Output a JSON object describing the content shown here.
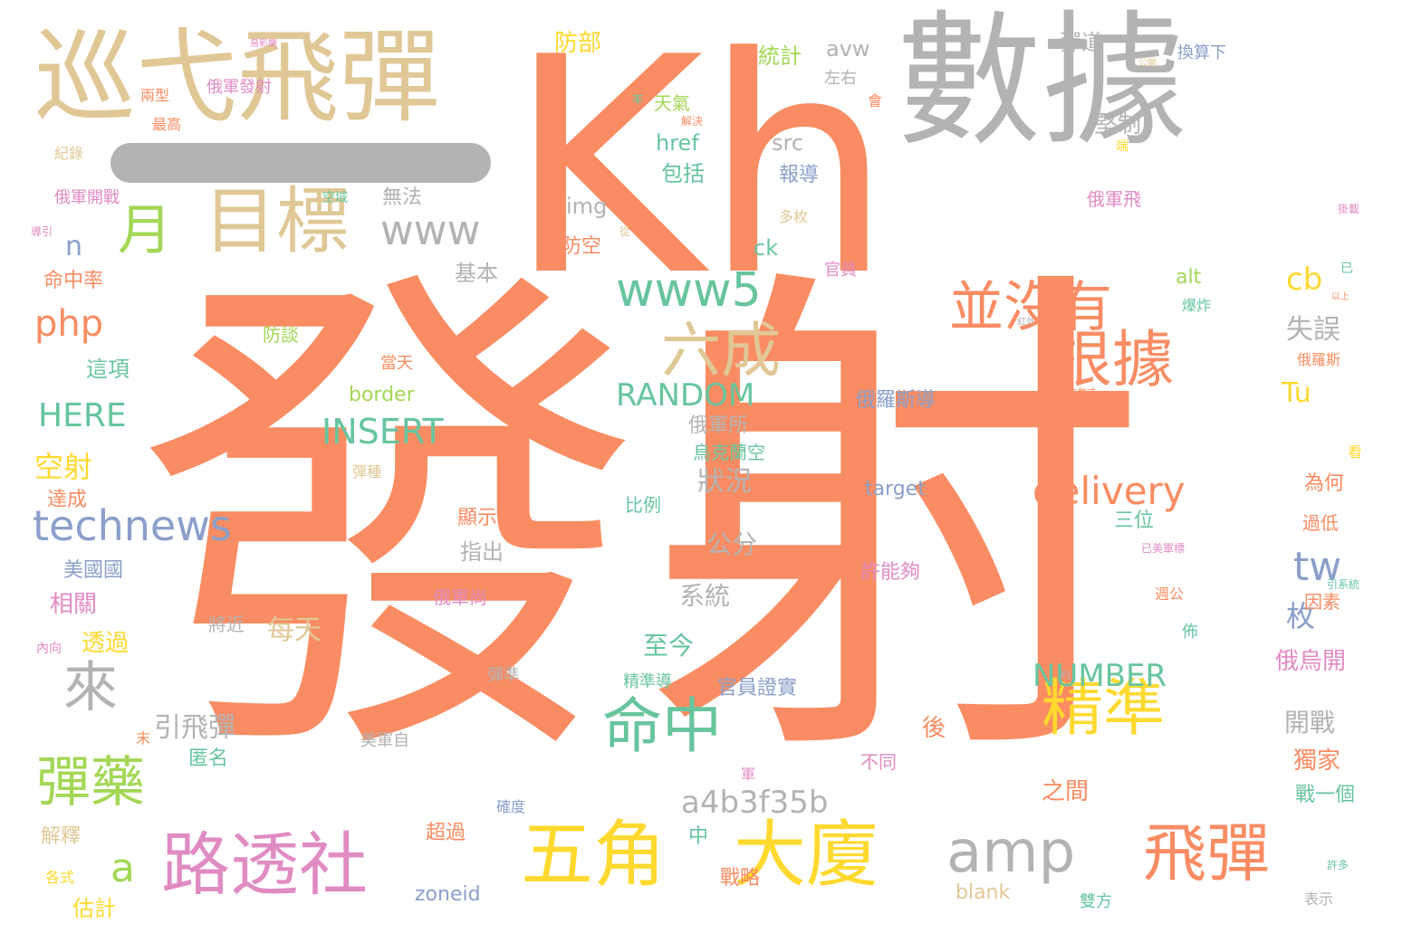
{
  "colors": {
    "orange": "#f98c62",
    "gray": "#b3b3b3",
    "tan": "#e0c896",
    "green": "#67c59e",
    "blue": "#8b9fca",
    "pink": "#e18bc3",
    "lime": "#a4d755",
    "yellow": "#ffd92e"
  },
  "words": [
    {
      "text": "發射",
      "color": "orange"
    },
    {
      "text": "Kh",
      "color": "orange"
    },
    {
      "text": "數據",
      "color": "gray"
    },
    {
      "text": "巡弋飛彈",
      "color": "tan"
    },
    {
      "text": "一",
      "color": "gray"
    },
    {
      "text": "目標",
      "color": "tan"
    },
    {
      "text": "月",
      "color": "lime"
    },
    {
      "text": "www",
      "color": "gray"
    },
    {
      "text": "www5",
      "color": "green"
    },
    {
      "text": "並沒有",
      "color": "orange"
    },
    {
      "text": "根據",
      "color": "orange"
    },
    {
      "text": "六成",
      "color": "tan"
    },
    {
      "text": "來",
      "color": "gray"
    },
    {
      "text": "命中",
      "color": "green"
    },
    {
      "text": "精準",
      "color": "yellow"
    },
    {
      "text": "彈藥",
      "color": "lime"
    },
    {
      "text": "路透社",
      "color": "pink"
    },
    {
      "text": "五角",
      "color": "yellow"
    },
    {
      "text": "大廈",
      "color": "yellow"
    },
    {
      "text": "amp",
      "color": "gray"
    },
    {
      "text": "飛彈",
      "color": "orange"
    },
    {
      "text": "technews",
      "color": "blue"
    },
    {
      "text": "delivery",
      "color": "orange"
    },
    {
      "text": "INSERT",
      "color": "green"
    },
    {
      "text": "RANDOM",
      "color": "green"
    },
    {
      "text": "NUMBER",
      "color": "green"
    },
    {
      "text": "a4b3f35b",
      "color": "gray"
    },
    {
      "text": "php",
      "color": "orange"
    },
    {
      "text": "tw",
      "color": "blue"
    },
    {
      "text": "cb",
      "color": "yellow"
    },
    {
      "text": "a",
      "color": "lime"
    },
    {
      "text": "n",
      "color": "blue"
    },
    {
      "text": "HERE",
      "color": "green"
    },
    {
      "text": "Tu",
      "color": "yellow"
    },
    {
      "text": "統計",
      "color": "lime"
    },
    {
      "text": "avw",
      "color": "gray"
    },
    {
      "text": "彈道",
      "color": "gray"
    },
    {
      "text": "換算下",
      "color": "blue"
    },
    {
      "text": "防部",
      "color": "yellow"
    },
    {
      "text": "左右",
      "color": "gray"
    },
    {
      "text": "天氣",
      "color": "lime"
    },
    {
      "text": "href",
      "color": "green"
    },
    {
      "text": "src",
      "color": "gray"
    },
    {
      "text": "堅制",
      "color": "gray"
    },
    {
      "text": "包括",
      "color": "green"
    },
    {
      "text": "報導",
      "color": "blue"
    },
    {
      "text": "無法",
      "color": "gray"
    },
    {
      "text": "img",
      "color": "gray"
    },
    {
      "text": "多枚",
      "color": "tan"
    },
    {
      "text": "俄軍飛",
      "color": "pink"
    },
    {
      "text": "防空",
      "color": "orange"
    },
    {
      "text": "ck",
      "color": "green"
    },
    {
      "text": "基本",
      "color": "gray"
    },
    {
      "text": "官員",
      "color": "pink"
    },
    {
      "text": "alt",
      "color": "lime"
    },
    {
      "text": "爆炸",
      "color": "green"
    },
    {
      "text": "命中率",
      "color": "orange"
    },
    {
      "text": "這項",
      "color": "green"
    },
    {
      "text": "防談",
      "color": "lime"
    },
    {
      "text": "當天",
      "color": "orange"
    },
    {
      "text": "border",
      "color": "lime"
    },
    {
      "text": "俄羅斯導",
      "color": "blue"
    },
    {
      "text": "失誤",
      "color": "gray"
    },
    {
      "text": "俄軍所",
      "color": "gray"
    },
    {
      "text": "烏克蘭空",
      "color": "green"
    },
    {
      "text": "空射",
      "color": "yellow"
    },
    {
      "text": "達成",
      "color": "orange"
    },
    {
      "text": "狀況",
      "color": "gray"
    },
    {
      "text": "target",
      "color": "blue"
    },
    {
      "text": "彈種",
      "color": "tan"
    },
    {
      "text": "為何",
      "color": "orange"
    },
    {
      "text": "三位",
      "color": "green"
    },
    {
      "text": "過低",
      "color": "orange"
    },
    {
      "text": "比例",
      "color": "green"
    },
    {
      "text": "顯示",
      "color": "orange"
    },
    {
      "text": "指出",
      "color": "gray"
    },
    {
      "text": "公分",
      "color": "gray"
    },
    {
      "text": "許能夠",
      "color": "pink"
    },
    {
      "text": "美國國",
      "color": "blue"
    },
    {
      "text": "相關",
      "color": "pink"
    },
    {
      "text": "俄軍尚",
      "color": "pink"
    },
    {
      "text": "系統",
      "color": "gray"
    },
    {
      "text": "枚",
      "color": "blue"
    },
    {
      "text": "每天",
      "color": "tan"
    },
    {
      "text": "將近",
      "color": "gray"
    },
    {
      "text": "透過",
      "color": "yellow"
    },
    {
      "text": "至今",
      "color": "green"
    },
    {
      "text": "週公",
      "color": "orange"
    },
    {
      "text": "因素",
      "color": "orange"
    },
    {
      "text": "官員證實",
      "color": "blue"
    },
    {
      "text": "俄烏開",
      "color": "pink"
    },
    {
      "text": "彈準",
      "color": "gray"
    },
    {
      "text": "精準導",
      "color": "green"
    },
    {
      "text": "開戰",
      "color": "gray"
    },
    {
      "text": "引飛彈",
      "color": "gray"
    },
    {
      "text": "匿名",
      "color": "green"
    },
    {
      "text": "後",
      "color": "orange"
    },
    {
      "text": "不同",
      "color": "pink"
    },
    {
      "text": "獨家",
      "color": "orange"
    },
    {
      "text": "美軍自",
      "color": "gray"
    },
    {
      "text": "之間",
      "color": "orange"
    },
    {
      "text": "戰一個",
      "color": "green"
    },
    {
      "text": "中",
      "color": "green"
    },
    {
      "text": "確度",
      "color": "blue"
    },
    {
      "text": "解釋",
      "color": "tan"
    },
    {
      "text": "超過",
      "color": "orange"
    },
    {
      "text": "戰略",
      "color": "orange"
    },
    {
      "text": "zoneid",
      "color": "blue"
    },
    {
      "text": "blank",
      "color": "tan"
    },
    {
      "text": "雙方",
      "color": "green"
    },
    {
      "text": "估計",
      "color": "yellow"
    },
    {
      "text": "表示",
      "color": "gray"
    },
    {
      "text": "俄軍開戰",
      "color": "pink"
    },
    {
      "text": "俄軍發射",
      "color": "pink"
    },
    {
      "text": "兩型",
      "color": "orange"
    },
    {
      "text": "最高",
      "color": "orange"
    },
    {
      "text": "紀錄",
      "color": "tan"
    },
    {
      "text": "空域",
      "color": "green"
    },
    {
      "text": "會",
      "color": "orange"
    },
    {
      "text": "率",
      "color": "green"
    },
    {
      "text": "解決",
      "color": "orange"
    },
    {
      "text": "從",
      "color": "tan"
    },
    {
      "text": "已",
      "color": "green"
    },
    {
      "text": "看",
      "color": "yellow"
    },
    {
      "text": "俄羅斯",
      "color": "orange"
    },
    {
      "text": "引系統",
      "color": "green"
    },
    {
      "text": "各式",
      "color": "yellow"
    },
    {
      "text": "內向",
      "color": "pink"
    },
    {
      "text": "約",
      "color": "gray"
    },
    {
      "text": "佈",
      "color": "green"
    },
    {
      "text": "軍",
      "color": "pink"
    },
    {
      "text": "末",
      "color": "orange"
    },
    {
      "text": "許多",
      "color": "green"
    },
    {
      "text": "端",
      "color": "yellow"
    },
    {
      "text": "掛載",
      "color": "pink"
    },
    {
      "text": "以上",
      "color": "orange"
    },
    {
      "text": "紅外",
      "color": "gray"
    },
    {
      "text": "主動式",
      "color": "orange"
    },
    {
      "text": "已美軍標",
      "color": "pink"
    },
    {
      "text": "導引",
      "color": "pink"
    },
    {
      "text": "公開",
      "color": "tan"
    },
    {
      "text": "鳥影機",
      "color": "pink"
    },
    {
      "text": "Su",
      "color": "orange"
    }
  ]
}
